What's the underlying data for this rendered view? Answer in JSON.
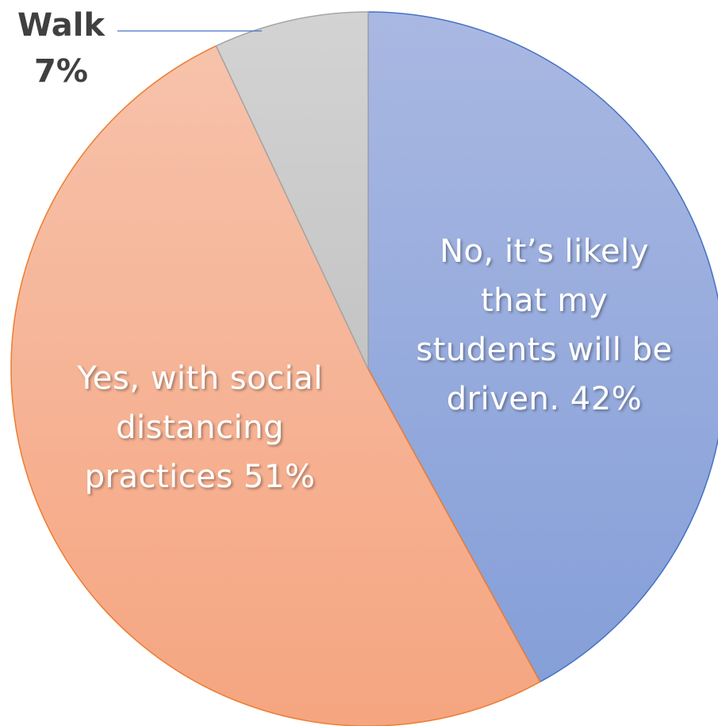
{
  "chart_data": {
    "type": "pie",
    "slices": [
      {
        "label_lines": [
          "No, it’s likely",
          "that my",
          "students will be",
          "driven. 42%"
        ],
        "value": 42,
        "color": "#8fa5d8"
      },
      {
        "label_lines": [
          "Yes, with social",
          "distancing",
          "practices 51%"
        ],
        "value": 51,
        "color": "#f5aa88"
      },
      {
        "label_lines": [
          "Walk",
          "7%"
        ],
        "value": 7,
        "color": "#c8c8c8"
      }
    ],
    "start_angle_deg": 0,
    "direction": "clockwise",
    "legend": "none"
  }
}
